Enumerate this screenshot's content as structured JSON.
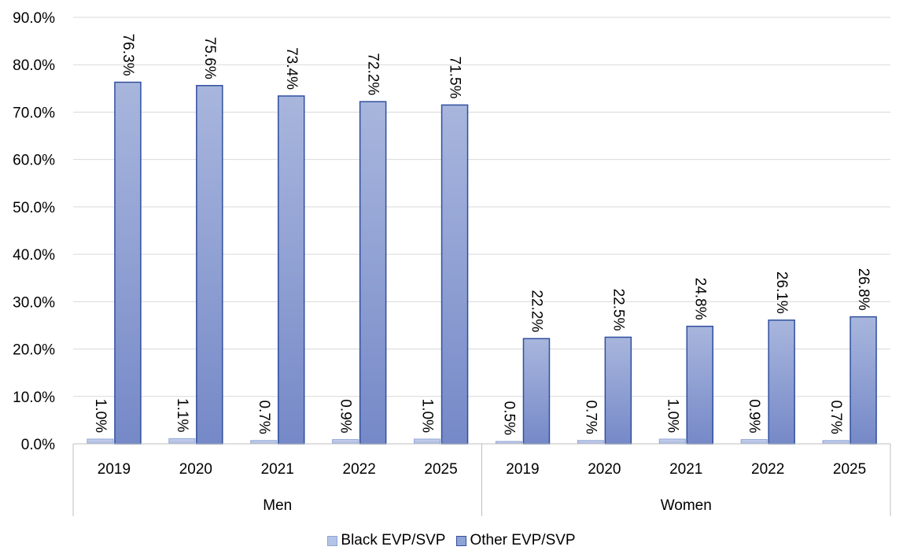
{
  "chart_data": {
    "type": "bar",
    "title": "",
    "xlabel": "",
    "ylabel": "",
    "ylim": [
      0,
      90
    ],
    "yticks": [
      "0.0%",
      "10.0%",
      "20.0%",
      "30.0%",
      "40.0%",
      "50.0%",
      "60.0%",
      "70.0%",
      "80.0%",
      "90.0%"
    ],
    "grid": true,
    "legend_position": "bottom",
    "groups": [
      {
        "label": "Men",
        "categories": [
          "2019",
          "2020",
          "2021",
          "2022",
          "2025"
        ]
      },
      {
        "label": "Women",
        "categories": [
          "2019",
          "2020",
          "2021",
          "2022",
          "2025"
        ]
      }
    ],
    "series": [
      {
        "name": "Black EVP/SVP",
        "color": "#b4c4e6",
        "values": [
          1.0,
          1.1,
          0.7,
          0.9,
          1.0,
          0.5,
          0.7,
          1.0,
          0.9,
          0.7
        ],
        "labels": [
          "1.0%",
          "1.1%",
          "0.7%",
          "0.9%",
          "1.0%",
          "0.5%",
          "0.7%",
          "1.0%",
          "0.9%",
          "0.7%"
        ]
      },
      {
        "name": "Other EVP/SVP",
        "color": "#8fa4d4",
        "values": [
          76.3,
          75.6,
          73.4,
          72.2,
          71.5,
          22.2,
          22.5,
          24.8,
          26.1,
          26.8
        ],
        "labels": [
          "76.3%",
          "75.6%",
          "73.4%",
          "72.2%",
          "71.5%",
          "22.2%",
          "22.5%",
          "24.8%",
          "26.1%",
          "26.8%"
        ]
      }
    ]
  }
}
